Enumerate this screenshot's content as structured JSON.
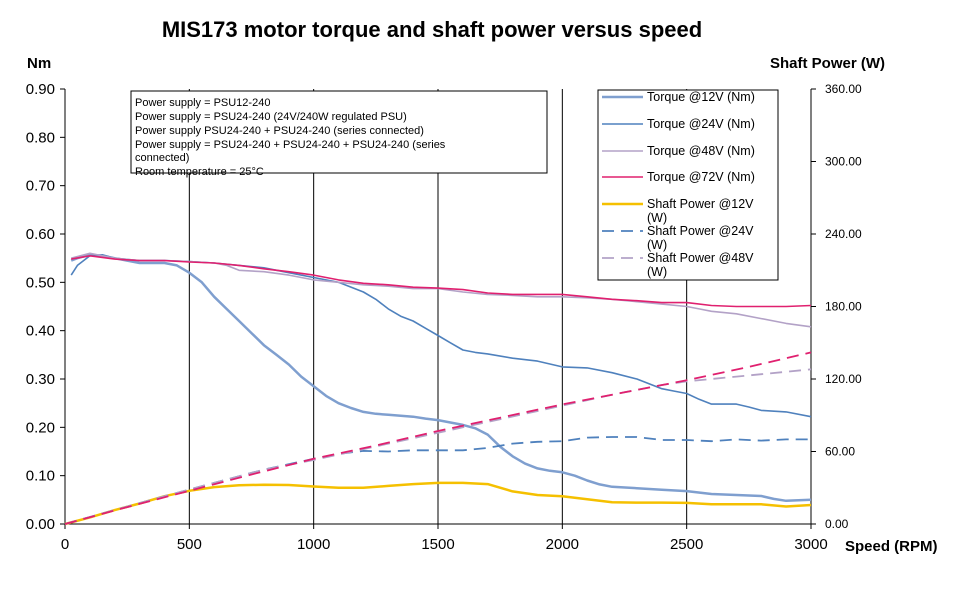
{
  "chart_data": {
    "type": "line",
    "title": "MIS173 motor torque and shaft power versus speed",
    "ylabel_left": "Nm",
    "ylabel_right": "Shaft Power (W)",
    "xlabel": "Speed (RPM)",
    "xlim": [
      0,
      3000
    ],
    "ylim_left": [
      0,
      0.9
    ],
    "ylim_right": [
      0,
      360
    ],
    "x_ticks": [
      "0",
      "500",
      "1000",
      "1500",
      "2000",
      "2500",
      "3000"
    ],
    "y_left_ticks": [
      "0.00",
      "0.10",
      "0.20",
      "0.30",
      "0.40",
      "0.50",
      "0.60",
      "0.70",
      "0.80",
      "0.90"
    ],
    "y_right_ticks": [
      "0.00",
      "60.00",
      "120.00",
      "180.00",
      "240.00",
      "300.00",
      "360.00"
    ],
    "grid": "vertical",
    "legend_position": "top-right",
    "notes": [
      "Power supply = PSU12-240",
      "Power supply = PSU24-240 (24V/240W regulated PSU)",
      "Power supply PSU24-240 + PSU24-240 (series connected)",
      "Power supply = PSU24-240 + PSU24-240 + PSU24-240 (series",
      "connected)",
      "Room temperature = 25°C"
    ],
    "series": [
      {
        "name": "Torque @12V (Nm)",
        "axis": "left",
        "color": "#7f9fcf",
        "dash": "solid",
        "width": 2.5,
        "x": [
          25,
          50,
          100,
          150,
          200,
          250,
          300,
          350,
          400,
          450,
          500,
          550,
          600,
          650,
          700,
          750,
          800,
          850,
          900,
          950,
          1000,
          1050,
          1100,
          1150,
          1200,
          1250,
          1300,
          1350,
          1400,
          1450,
          1500,
          1550,
          1600,
          1650,
          1700,
          1750,
          1800,
          1850,
          1900,
          1950,
          2000,
          2050,
          2100,
          2150,
          2200,
          2300,
          2400,
          2500,
          2600,
          2700,
          2800,
          2850,
          2900,
          2950,
          3000
        ],
        "y": [
          0.545,
          0.55,
          0.557,
          0.555,
          0.55,
          0.545,
          0.54,
          0.54,
          0.54,
          0.535,
          0.52,
          0.5,
          0.47,
          0.445,
          0.42,
          0.395,
          0.37,
          0.35,
          0.33,
          0.305,
          0.285,
          0.265,
          0.25,
          0.24,
          0.232,
          0.228,
          0.226,
          0.224,
          0.222,
          0.218,
          0.215,
          0.21,
          0.205,
          0.198,
          0.185,
          0.16,
          0.14,
          0.125,
          0.115,
          0.11,
          0.107,
          0.1,
          0.09,
          0.082,
          0.077,
          0.074,
          0.071,
          0.068,
          0.062,
          0.06,
          0.058,
          0.052,
          0.048,
          0.049,
          0.05
        ]
      },
      {
        "name": "Torque @24V (Nm)",
        "axis": "left",
        "color": "#4f81bd",
        "dash": "solid",
        "width": 1.6,
        "x": [
          25,
          50,
          100,
          150,
          200,
          300,
          400,
          500,
          600,
          700,
          800,
          900,
          1000,
          1100,
          1200,
          1250,
          1300,
          1350,
          1400,
          1450,
          1500,
          1550,
          1600,
          1650,
          1700,
          1800,
          1900,
          2000,
          2100,
          2200,
          2300,
          2400,
          2450,
          2500,
          2550,
          2600,
          2650,
          2700,
          2750,
          2800,
          2900,
          3000
        ],
        "y": [
          0.515,
          0.535,
          0.555,
          0.557,
          0.55,
          0.545,
          0.545,
          0.543,
          0.54,
          0.535,
          0.53,
          0.52,
          0.51,
          0.5,
          0.48,
          0.465,
          0.445,
          0.43,
          0.42,
          0.405,
          0.39,
          0.375,
          0.36,
          0.355,
          0.352,
          0.343,
          0.337,
          0.325,
          0.323,
          0.313,
          0.3,
          0.28,
          0.275,
          0.27,
          0.258,
          0.248,
          0.248,
          0.248,
          0.242,
          0.235,
          0.232,
          0.222
        ]
      },
      {
        "name": "Torque @48V (Nm)",
        "axis": "left",
        "color": "#b3a2c7",
        "dash": "solid",
        "width": 1.6,
        "x": [
          25,
          100,
          200,
          300,
          400,
          500,
          600,
          650,
          700,
          800,
          900,
          1000,
          1100,
          1200,
          1300,
          1400,
          1500,
          1600,
          1700,
          1800,
          1900,
          2000,
          2100,
          2200,
          2300,
          2400,
          2500,
          2550,
          2600,
          2700,
          2800,
          2900,
          3000
        ],
        "y": [
          0.55,
          0.56,
          0.55,
          0.545,
          0.545,
          0.543,
          0.54,
          0.535,
          0.525,
          0.522,
          0.515,
          0.505,
          0.5,
          0.495,
          0.492,
          0.487,
          0.487,
          0.48,
          0.475,
          0.473,
          0.47,
          0.47,
          0.468,
          0.465,
          0.46,
          0.455,
          0.45,
          0.445,
          0.44,
          0.435,
          0.425,
          0.415,
          0.408
        ]
      },
      {
        "name": "Torque @72V (Nm)",
        "axis": "left",
        "color": "#e0206f",
        "dash": "solid",
        "width": 1.6,
        "x": [
          25,
          100,
          200,
          300,
          400,
          500,
          600,
          700,
          800,
          900,
          1000,
          1100,
          1200,
          1300,
          1400,
          1500,
          1600,
          1700,
          1800,
          1900,
          2000,
          2100,
          2200,
          2300,
          2400,
          2500,
          2600,
          2700,
          2800,
          2900,
          3000
        ],
        "y": [
          0.548,
          0.555,
          0.548,
          0.545,
          0.545,
          0.542,
          0.54,
          0.535,
          0.528,
          0.522,
          0.515,
          0.505,
          0.498,
          0.495,
          0.49,
          0.488,
          0.485,
          0.478,
          0.475,
          0.475,
          0.475,
          0.47,
          0.465,
          0.462,
          0.458,
          0.458,
          0.452,
          0.45,
          0.45,
          0.45,
          0.452
        ]
      },
      {
        "name": "Shaft Power @12V (W)",
        "axis": "right",
        "color": "#f5c000",
        "dash": "solid",
        "width": 2.5,
        "x": [
          0,
          100,
          200,
          300,
          400,
          500,
          600,
          700,
          800,
          900,
          1000,
          1100,
          1200,
          1300,
          1400,
          1500,
          1600,
          1700,
          1800,
          1900,
          2000,
          2100,
          2200,
          2300,
          2400,
          2500,
          2600,
          2700,
          2800,
          2900,
          3000
        ],
        "y": [
          0,
          5.5,
          11.5,
          17,
          23,
          27.5,
          30.5,
          32,
          32.5,
          32.3,
          31,
          30,
          30,
          31.5,
          33,
          34,
          34,
          33,
          27,
          24,
          23,
          20.5,
          18,
          17.7,
          17.7,
          17.5,
          16.3,
          16.3,
          16.3,
          14.5,
          15.7
        ]
      },
      {
        "name": "Shaft Power @24V (W)",
        "axis": "right",
        "color": "#4f81bd",
        "dash": "long",
        "width": 1.8,
        "x": [
          0,
          200,
          400,
          600,
          800,
          1000,
          1100,
          1200,
          1300,
          1400,
          1500,
          1600,
          1700,
          1800,
          1900,
          2000,
          2100,
          2200,
          2300,
          2400,
          2500,
          2600,
          2700,
          2800,
          2900,
          3000
        ],
        "y": [
          0,
          11.5,
          23,
          34,
          45,
          54,
          58,
          60.5,
          60,
          61,
          61,
          61,
          63,
          66.5,
          68,
          68.5,
          71.5,
          72,
          72,
          69.5,
          69.5,
          68.5,
          70,
          69,
          70,
          70
        ]
      },
      {
        "name": "Shaft Power @48V (W)",
        "axis": "right",
        "color": "#b3a2c7",
        "dash": "long",
        "width": 1.8,
        "x": [
          0,
          200,
          400,
          600,
          800,
          1000,
          1200,
          1400,
          1600,
          1800,
          2000,
          2200,
          2400,
          2500,
          2600,
          2700,
          2800,
          2900,
          3000
        ],
        "y": [
          0,
          11.5,
          23,
          34,
          45,
          53,
          62,
          71,
          80,
          89,
          98,
          107,
          115,
          118,
          120,
          122,
          124,
          126,
          128
        ]
      },
      {
        "name": "",
        "axis": "right",
        "color": "#e0206f",
        "dash": "long",
        "width": 1.8,
        "x": [
          0,
          250,
          500,
          750,
          1000,
          1250,
          1500,
          1750,
          2000,
          2250,
          2500,
          2750,
          3000
        ],
        "y": [
          0,
          14,
          27.5,
          41,
          54,
          65,
          77,
          88,
          99,
          109,
          119,
          130,
          142
        ]
      }
    ]
  }
}
